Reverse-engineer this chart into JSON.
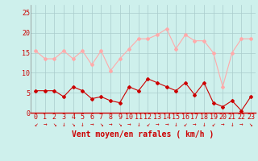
{
  "x": [
    0,
    1,
    2,
    3,
    4,
    5,
    6,
    7,
    8,
    9,
    10,
    11,
    12,
    13,
    14,
    15,
    16,
    17,
    18,
    19,
    20,
    21,
    22,
    23
  ],
  "wind_avg": [
    5.5,
    5.5,
    5.5,
    4.0,
    6.5,
    5.5,
    3.5,
    4.0,
    3.0,
    2.5,
    6.5,
    5.5,
    8.5,
    7.5,
    6.5,
    5.5,
    7.5,
    4.5,
    7.5,
    2.5,
    1.5,
    3.0,
    0.5,
    4.0
  ],
  "wind_gust": [
    15.5,
    13.5,
    13.5,
    15.5,
    13.5,
    15.5,
    12.0,
    15.5,
    10.5,
    13.5,
    16.0,
    18.5,
    18.5,
    19.5,
    21.0,
    16.0,
    19.5,
    18.0,
    18.0,
    15.0,
    6.5,
    15.0,
    18.5,
    18.5
  ],
  "color_avg": "#cc0000",
  "color_gust": "#ffaaaa",
  "bg_color": "#cef0ec",
  "grid_color": "#aacccc",
  "xlabel": "Vent moyen/en rafales ( km/h )",
  "ylim": [
    0,
    27
  ],
  "yticks": [
    0,
    5,
    10,
    15,
    20,
    25
  ],
  "xticks": [
    0,
    1,
    2,
    3,
    4,
    5,
    6,
    7,
    8,
    9,
    10,
    11,
    12,
    13,
    14,
    15,
    16,
    17,
    18,
    19,
    20,
    21,
    22,
    23
  ],
  "marker": "D",
  "markersize": 2,
  "linewidth": 0.8,
  "xlabel_fontsize": 7,
  "tick_fontsize": 6,
  "tick_color": "#cc0000",
  "arrow_chars": [
    "↙",
    "→",
    "↘",
    "↓",
    "↘",
    "↓",
    "→",
    "↘",
    "→",
    "↘",
    "→",
    "↓",
    "↙",
    "→",
    "→",
    "↓",
    "↙",
    "→",
    "↓",
    "↙",
    "→",
    "↓",
    "→",
    "↘"
  ]
}
